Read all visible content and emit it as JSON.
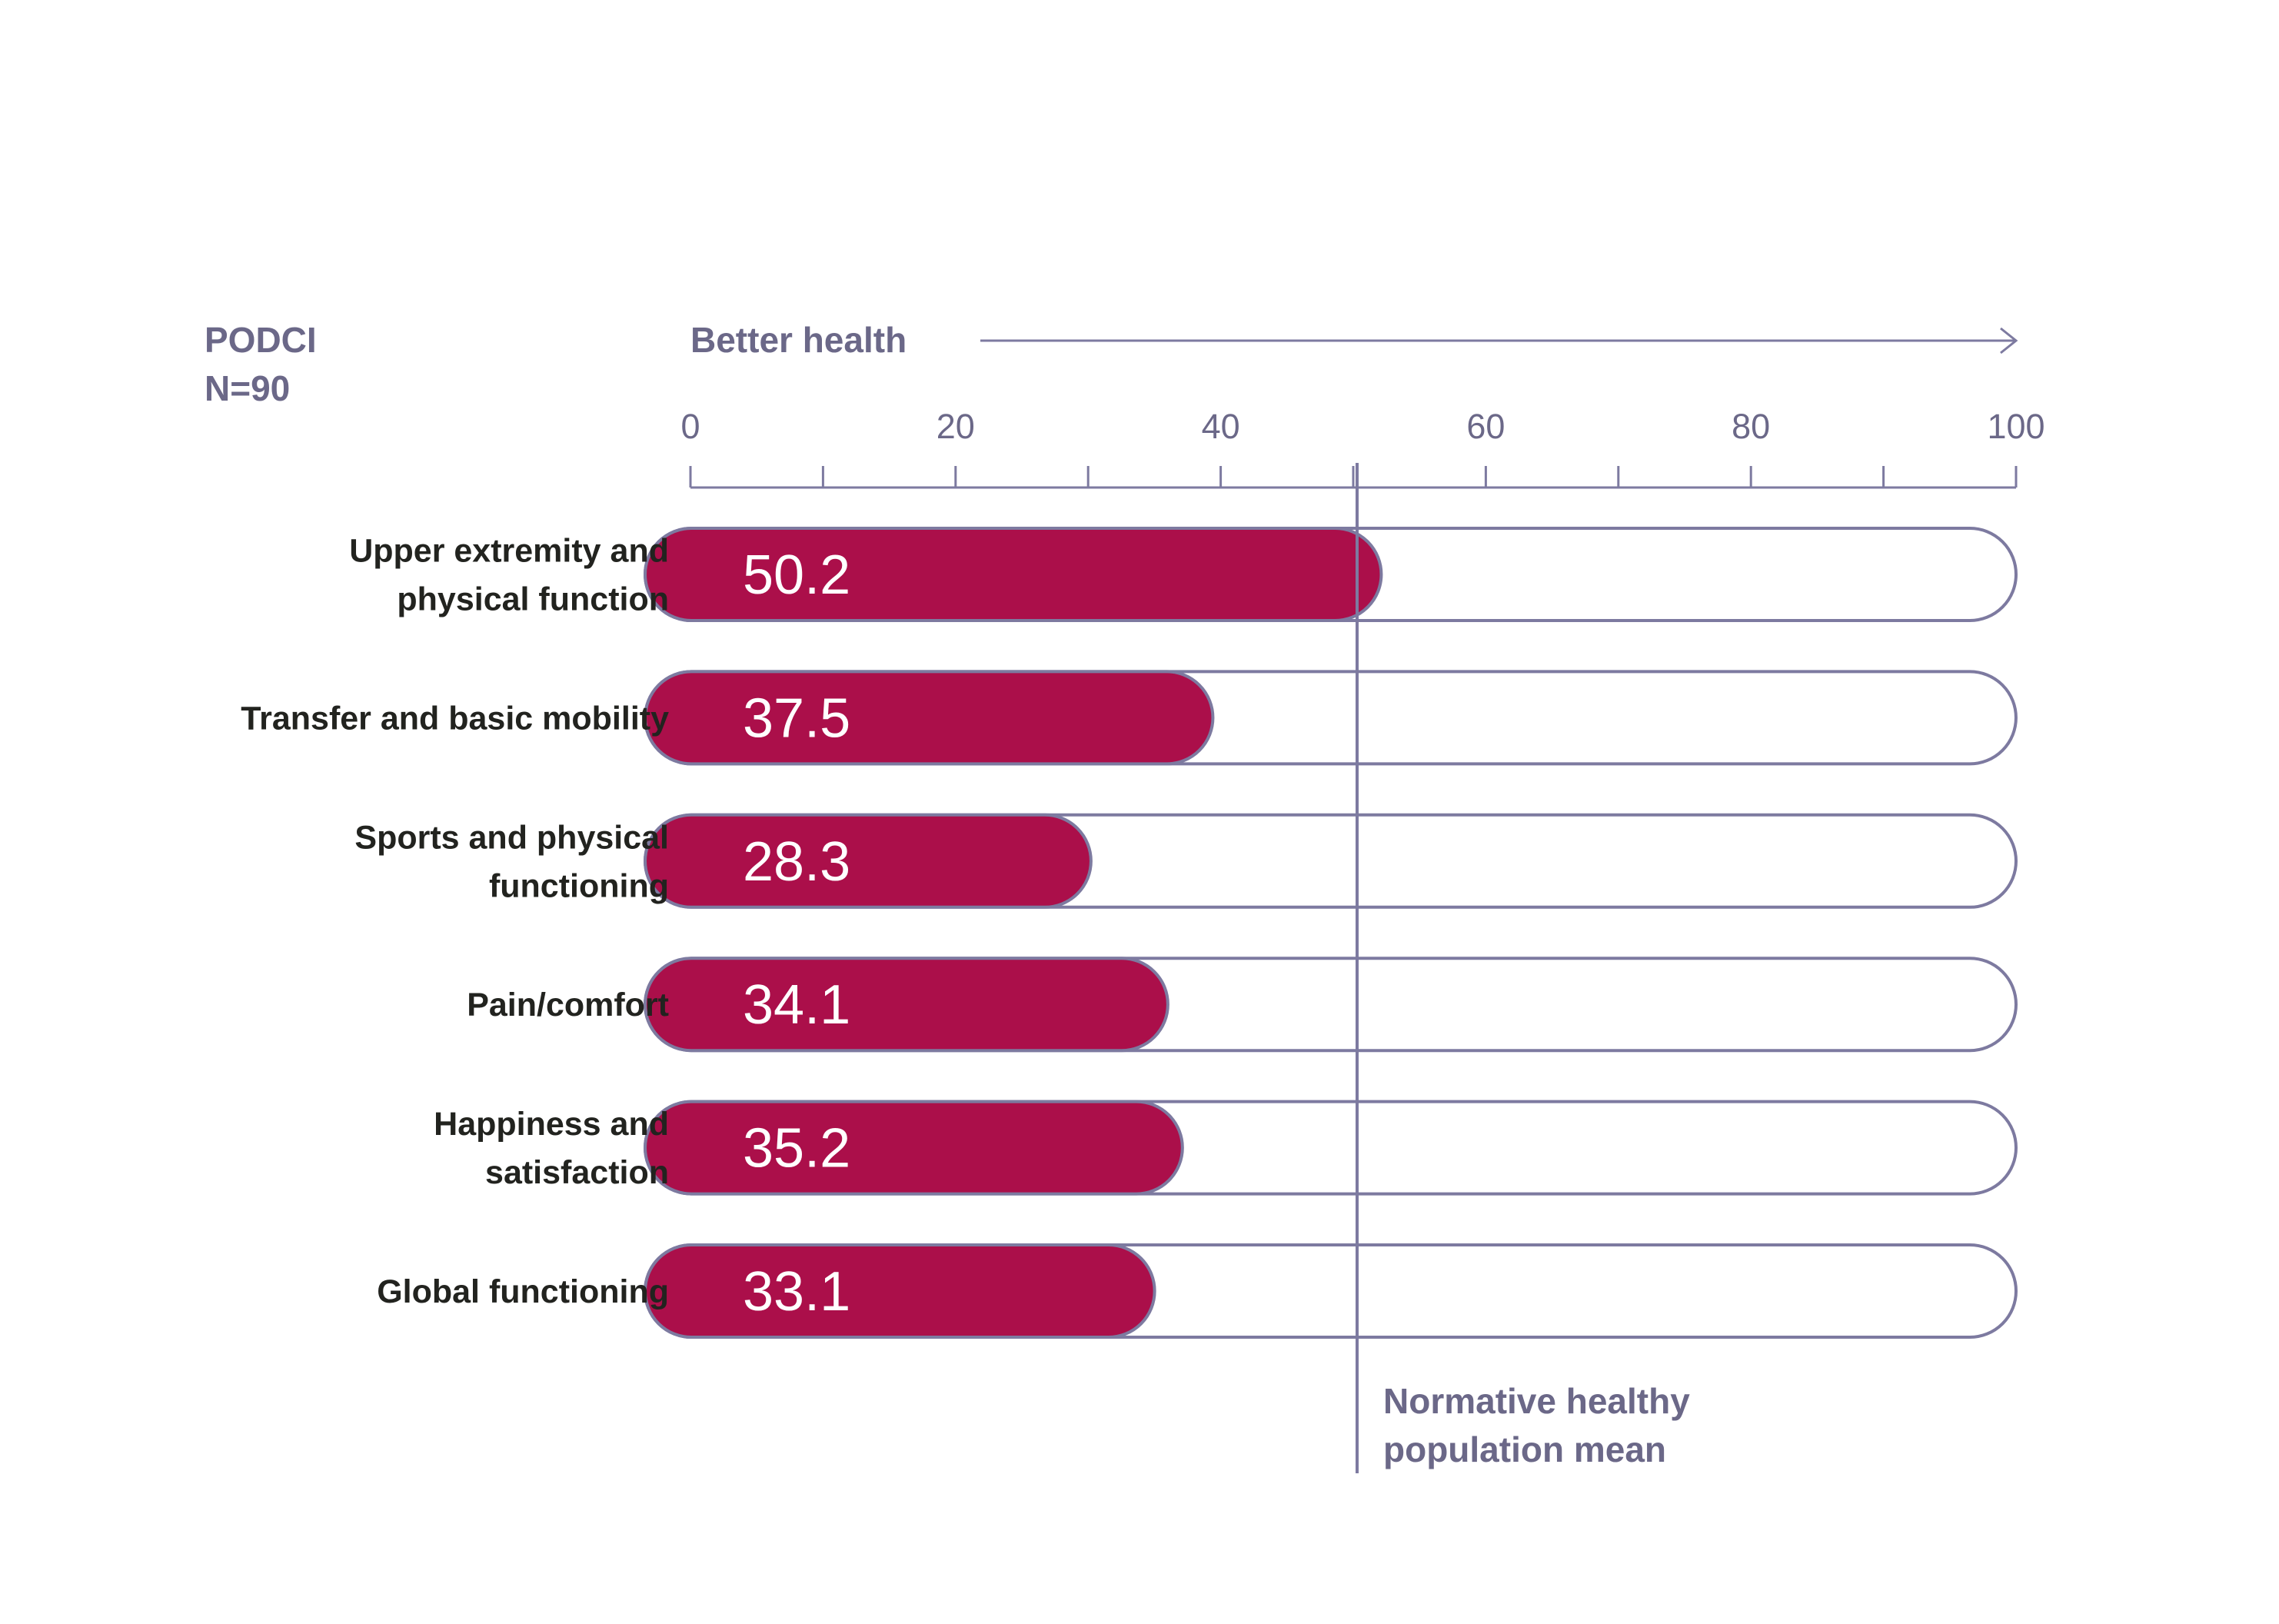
{
  "chart_data": {
    "type": "bar",
    "orientation": "horizontal",
    "dataset_label": [
      "PODCI",
      "N=90"
    ],
    "direction_label": "Better health",
    "categories": [
      [
        "Upper extremity and",
        "physical function"
      ],
      [
        "Transfer and basic mobility"
      ],
      [
        "Sports and physical",
        "functioning"
      ],
      [
        "Pain/comfort"
      ],
      [
        "Happiness and",
        "satisfaction"
      ],
      [
        "Global functioning"
      ]
    ],
    "values": [
      50.2,
      37.5,
      28.3,
      34.1,
      35.2,
      33.1
    ],
    "value_labels": [
      "50.2",
      "37.5",
      "28.3",
      "34.1",
      "35.2",
      "33.1"
    ],
    "xlim": [
      0,
      100
    ],
    "major_ticks": [
      0,
      20,
      40,
      60,
      80,
      100
    ],
    "minor_ticks": [
      10,
      30,
      50,
      70,
      90
    ],
    "reference_line": {
      "value": 50,
      "label": [
        "Normative healthy",
        "population mean"
      ]
    },
    "colors": {
      "bar": "#ab0f4a",
      "outline": "#7d7aa0",
      "text": "#6b6888",
      "category_text": "#22231f"
    },
    "grid": false,
    "legend": "none"
  }
}
